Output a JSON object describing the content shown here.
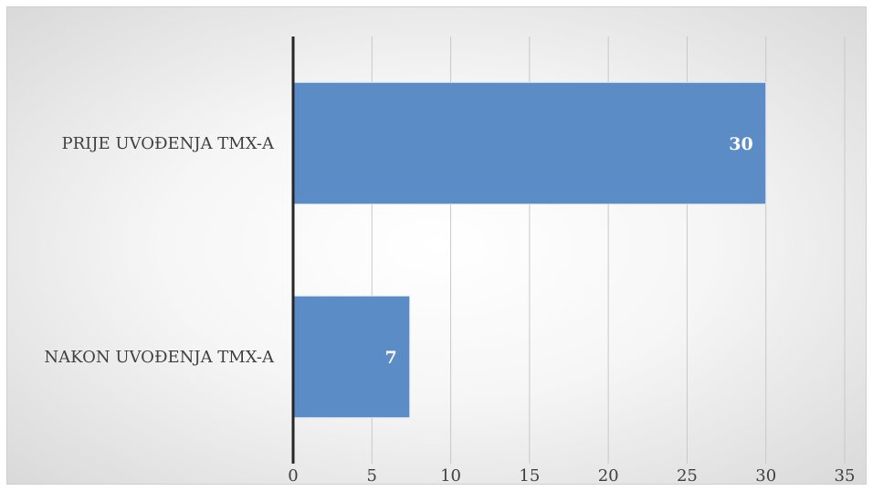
{
  "chart_data": {
    "type": "bar",
    "orientation": "horizontal",
    "title": "",
    "categories": [
      "PRIJE UVOĐENJA TMX-A",
      "NAKON UVOĐENJA TMX-A"
    ],
    "values": [
      30,
      7.4
    ],
    "data_labels": [
      "30",
      "7"
    ],
    "xlim": [
      0,
      35
    ],
    "x_ticks": [
      0,
      5,
      10,
      15,
      20,
      25,
      30,
      35
    ],
    "grid": "vertical",
    "legend": "none",
    "bar_color": "#5b8cc6",
    "axis_color": "#262626"
  }
}
